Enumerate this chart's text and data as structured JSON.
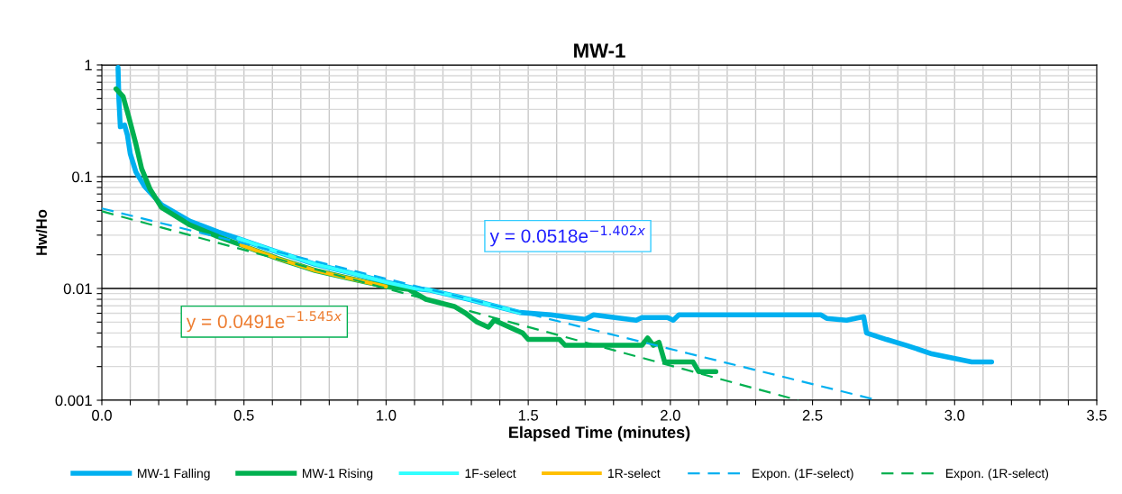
{
  "chart_data": {
    "type": "line",
    "title": "MW-1",
    "xlabel": "Elapsed Time (minutes)",
    "ylabel": "Hw/Ho",
    "log": "y",
    "grid": true,
    "legend": "bottom",
    "marker": "none",
    "xlim": [
      0,
      3.5
    ],
    "ylim": [
      0.001,
      1
    ],
    "xticks": [
      {
        "value": 0,
        "label": "0.0"
      },
      {
        "value": 0.1,
        "label": null
      },
      {
        "value": 0.2,
        "label": null
      },
      {
        "value": 0.3,
        "label": null
      },
      {
        "value": 0.4,
        "label": null
      },
      {
        "value": 0.5,
        "label": "0.5"
      },
      {
        "value": 0.6,
        "label": null
      },
      {
        "value": 0.7,
        "label": null
      },
      {
        "value": 0.8,
        "label": null
      },
      {
        "value": 0.9,
        "label": null
      },
      {
        "value": 1.0,
        "label": "1.0"
      },
      {
        "value": 1.1,
        "label": null
      },
      {
        "value": 1.2,
        "label": null
      },
      {
        "value": 1.3,
        "label": null
      },
      {
        "value": 1.4,
        "label": null
      },
      {
        "value": 1.5,
        "label": "1.5"
      },
      {
        "value": 1.6,
        "label": null
      },
      {
        "value": 1.7,
        "label": null
      },
      {
        "value": 1.8,
        "label": null
      },
      {
        "value": 1.9,
        "label": null
      },
      {
        "value": 2.0,
        "label": "2.0"
      },
      {
        "value": 2.1,
        "label": null
      },
      {
        "value": 2.2,
        "label": null
      },
      {
        "value": 2.3,
        "label": null
      },
      {
        "value": 2.4,
        "label": null
      },
      {
        "value": 2.5,
        "label": "2.5"
      },
      {
        "value": 2.6,
        "label": null
      },
      {
        "value": 2.7,
        "label": null
      },
      {
        "value": 2.8,
        "label": null
      },
      {
        "value": 2.9,
        "label": null
      },
      {
        "value": 3.0,
        "label": "3.0"
      },
      {
        "value": 3.1,
        "label": null
      },
      {
        "value": 3.2,
        "label": null
      },
      {
        "value": 3.3,
        "label": null
      },
      {
        "value": 3.4,
        "label": null
      },
      {
        "value": 3.5,
        "label": "3.5"
      }
    ],
    "yticks": [
      0.001,
      {
        "value": 0.002,
        "label": null
      },
      {
        "value": 0.003,
        "label": null
      },
      {
        "value": 0.004,
        "label": null
      },
      {
        "value": 0.005,
        "label": null
      },
      {
        "value": 0.006,
        "label": null
      },
      {
        "value": 0.007,
        "label": null
      },
      {
        "value": 0.008,
        "label": null
      },
      {
        "value": 0.009,
        "label": null
      },
      0.01,
      {
        "value": 0.02,
        "label": null
      },
      {
        "value": 0.03,
        "label": null
      },
      {
        "value": 0.04,
        "label": null
      },
      {
        "value": 0.05,
        "label": null
      },
      {
        "value": 0.06,
        "label": null
      },
      {
        "value": 0.07,
        "label": null
      },
      {
        "value": 0.08,
        "label": null
      },
      {
        "value": 0.09,
        "label": null
      },
      0.1,
      {
        "value": 0.2,
        "label": null
      },
      {
        "value": 0.3,
        "label": null
      },
      {
        "value": 0.4,
        "label": null
      },
      {
        "value": 0.5,
        "label": null
      },
      {
        "value": 0.6,
        "label": null
      },
      {
        "value": 0.7,
        "label": null
      },
      {
        "value": 0.8,
        "label": null
      },
      {
        "value": 0.9,
        "label": null
      },
      1
    ],
    "annotations": [
      "y = 0.0518e$^{−1.402x}$",
      "y = 0.0491e$^{−1.545x}$"
    ],
    "series": [
      {
        "name": "MW-1 Falling",
        "color": "#00b0f0",
        "line_style": "solid",
        "x": [
          0.057,
          0.06,
          0.065,
          0.08,
          0.09,
          0.1,
          0.12,
          0.15,
          0.21,
          0.31,
          0.41,
          0.48,
          0.6,
          0.75,
          0.9,
          1.0,
          1.1,
          1.15,
          1.3,
          1.47,
          1.58,
          1.7,
          1.73,
          1.88,
          1.9,
          1.99,
          2.01,
          2.03,
          2.53,
          2.55,
          2.62,
          2.68,
          2.69,
          2.76,
          2.83,
          2.92,
          3.06,
          3.13
        ],
        "values": [
          0.95,
          0.49,
          0.28,
          0.29,
          0.235,
          0.16,
          0.11,
          0.082,
          0.056,
          0.04,
          0.032,
          0.028,
          0.022,
          0.0165,
          0.0133,
          0.0114,
          0.01,
          0.0097,
          0.0079,
          0.0061,
          0.0058,
          0.0053,
          0.0058,
          0.0052,
          0.0055,
          0.0055,
          0.0052,
          0.0058,
          0.0058,
          0.0054,
          0.0052,
          0.0056,
          0.004,
          0.0035,
          0.0031,
          0.0026,
          0.0022,
          0.0022
        ]
      },
      {
        "name": "MW-1 Rising",
        "color": "#00b050",
        "line_style": "solid",
        "x": [
          0.05,
          0.075,
          0.095,
          0.12,
          0.14,
          0.17,
          0.21,
          0.31,
          0.41,
          0.49,
          0.62,
          0.75,
          0.86,
          1.0,
          1.08,
          1.14,
          1.24,
          1.28,
          1.32,
          1.36,
          1.38,
          1.48,
          1.5,
          1.61,
          1.63,
          1.9,
          1.92,
          1.94,
          1.96,
          1.98,
          2.08,
          2.1,
          2.16
        ],
        "values": [
          0.61,
          0.52,
          0.34,
          0.195,
          0.118,
          0.077,
          0.053,
          0.037,
          0.029,
          0.0245,
          0.0185,
          0.0145,
          0.0125,
          0.0104,
          0.0098,
          0.008,
          0.0069,
          0.006,
          0.005,
          0.0045,
          0.0052,
          0.004,
          0.0035,
          0.0035,
          0.0031,
          0.0031,
          0.0036,
          0.0031,
          0.0033,
          0.0022,
          0.0022,
          0.0018,
          0.0018
        ]
      },
      {
        "name": "1F-select",
        "color": "#33ffff",
        "line_style": "solid",
        "x": [
          0.48,
          0.6,
          0.75,
          0.9,
          1.0,
          1.1,
          1.15,
          1.3,
          1.47
        ],
        "values": [
          0.028,
          0.022,
          0.0165,
          0.0133,
          0.0114,
          0.01,
          0.0097,
          0.0079,
          0.0061
        ]
      },
      {
        "name": "1R-select",
        "color": "#ffc000",
        "line_style": "solid",
        "x": [
          0.49,
          0.62,
          0.75,
          0.86,
          1.0
        ],
        "values": [
          0.0245,
          0.0185,
          0.0145,
          0.0125,
          0.0104
        ]
      },
      {
        "name": "Expon. (1F-select)",
        "color": "#00b0f0",
        "line_style": "dashed",
        "x": [
          0,
          2.73
        ],
        "values": [
          0.052,
          0.001
        ]
      },
      {
        "name": "Expon. (1R-select)",
        "color": "#00b050",
        "line_style": "dashed",
        "x": [
          0,
          2.45
        ],
        "values": [
          0.049,
          0.001
        ]
      }
    ]
  }
}
